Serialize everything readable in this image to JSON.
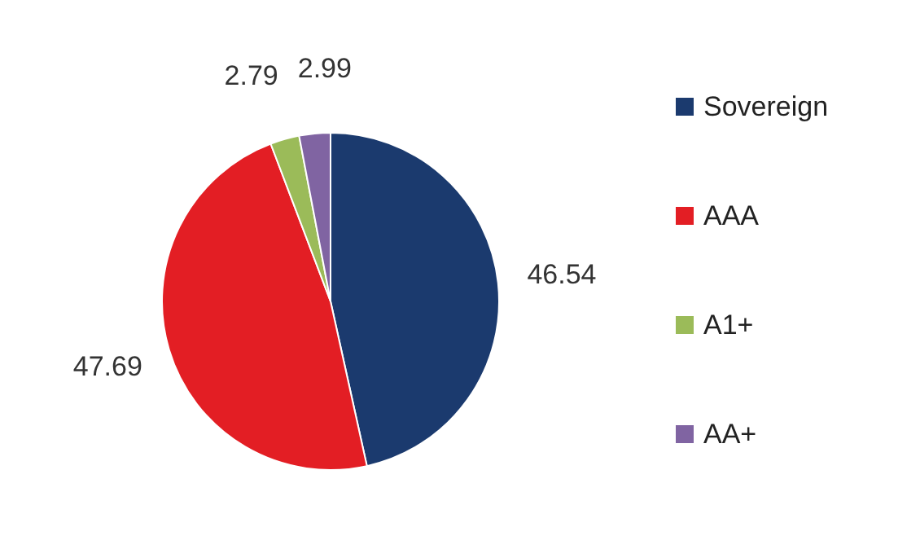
{
  "chart_data": {
    "type": "pie",
    "categories": [
      "Sovereign",
      "AAA",
      "A1+",
      "AA+"
    ],
    "values": [
      46.54,
      47.69,
      2.79,
      2.99
    ],
    "colors": [
      "#1b3a6e",
      "#e31e24",
      "#9bbb59",
      "#8064a2"
    ],
    "data_labels": true,
    "legend": "right"
  }
}
